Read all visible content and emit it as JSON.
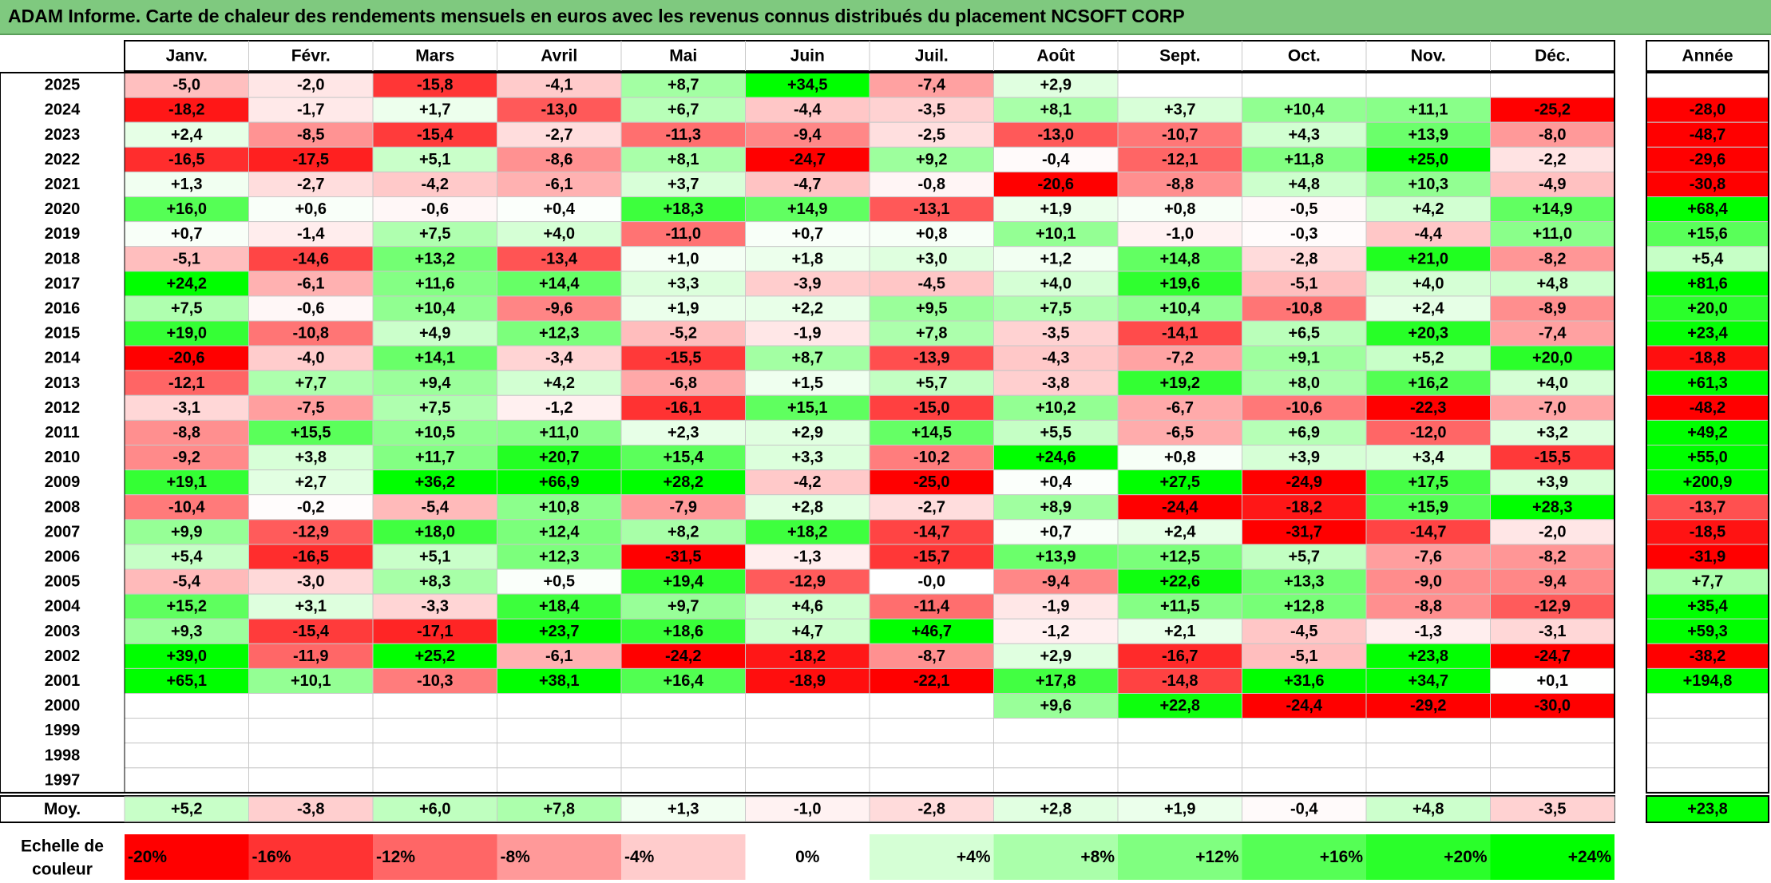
{
  "title": "ADAM Informe. Carte de chaleur des rendements mensuels en euros avec les revenus connus distribués du placement NCSOFT CORP",
  "chart_data": {
    "type": "heatmap",
    "months": [
      "Janv.",
      "Févr.",
      "Mars",
      "Avril",
      "Mai",
      "Juin",
      "Juil.",
      "Août",
      "Sept.",
      "Oct.",
      "Nov.",
      "Déc."
    ],
    "year_header": "Année",
    "rows": [
      {
        "label": "2025",
        "values": [
          "-5,0",
          "-2,0",
          "-15,8",
          "-4,1",
          "+8,7",
          "+34,5",
          "-7,4",
          "+2,9",
          "",
          "",
          "",
          ""
        ],
        "year": ""
      },
      {
        "label": "2024",
        "values": [
          "-18,2",
          "-1,7",
          "+1,7",
          "-13,0",
          "+6,7",
          "-4,4",
          "-3,5",
          "+8,1",
          "+3,7",
          "+10,4",
          "+11,1",
          "-25,2"
        ],
        "year": "-28,0"
      },
      {
        "label": "2023",
        "values": [
          "+2,4",
          "-8,5",
          "-15,4",
          "-2,7",
          "-11,3",
          "-9,4",
          "-2,5",
          "-13,0",
          "-10,7",
          "+4,3",
          "+13,9",
          "-8,0"
        ],
        "year": "-48,7"
      },
      {
        "label": "2022",
        "values": [
          "-16,5",
          "-17,5",
          "+5,1",
          "-8,6",
          "+8,1",
          "-24,7",
          "+9,2",
          "-0,4",
          "-12,1",
          "+11,8",
          "+25,0",
          "-2,2"
        ],
        "year": "-29,6"
      },
      {
        "label": "2021",
        "values": [
          "+1,3",
          "-2,7",
          "-4,2",
          "-6,1",
          "+3,7",
          "-4,7",
          "-0,8",
          "-20,6",
          "-8,8",
          "+4,8",
          "+10,3",
          "-4,9"
        ],
        "year": "-30,8"
      },
      {
        "label": "2020",
        "values": [
          "+16,0",
          "+0,6",
          "-0,6",
          "+0,4",
          "+18,3",
          "+14,9",
          "-13,1",
          "+1,9",
          "+0,8",
          "-0,5",
          "+4,2",
          "+14,9"
        ],
        "year": "+68,4"
      },
      {
        "label": "2019",
        "values": [
          "+0,7",
          "-1,4",
          "+7,5",
          "+4,0",
          "-11,0",
          "+0,7",
          "+0,8",
          "+10,1",
          "-1,0",
          "-0,3",
          "-4,4",
          "+11,0"
        ],
        "year": "+15,6"
      },
      {
        "label": "2018",
        "values": [
          "-5,1",
          "-14,6",
          "+13,2",
          "-13,4",
          "+1,0",
          "+1,8",
          "+3,0",
          "+1,2",
          "+14,8",
          "-2,8",
          "+21,0",
          "-8,2"
        ],
        "year": "+5,4"
      },
      {
        "label": "2017",
        "values": [
          "+24,2",
          "-6,1",
          "+11,6",
          "+14,4",
          "+3,3",
          "-3,9",
          "-4,5",
          "+4,0",
          "+19,6",
          "-5,1",
          "+4,0",
          "+4,8"
        ],
        "year": "+81,6"
      },
      {
        "label": "2016",
        "values": [
          "+7,5",
          "-0,6",
          "+10,4",
          "-9,6",
          "+1,9",
          "+2,2",
          "+9,5",
          "+7,5",
          "+10,4",
          "-10,8",
          "+2,4",
          "-8,9"
        ],
        "year": "+20,0"
      },
      {
        "label": "2015",
        "values": [
          "+19,0",
          "-10,8",
          "+4,9",
          "+12,3",
          "-5,2",
          "-1,9",
          "+7,8",
          "-3,5",
          "-14,1",
          "+6,5",
          "+20,3",
          "-7,4"
        ],
        "year": "+23,4"
      },
      {
        "label": "2014",
        "values": [
          "-20,6",
          "-4,0",
          "+14,1",
          "-3,4",
          "-15,5",
          "+8,7",
          "-13,9",
          "-4,3",
          "-7,2",
          "+9,1",
          "+5,2",
          "+20,0"
        ],
        "year": "-18,8"
      },
      {
        "label": "2013",
        "values": [
          "-12,1",
          "+7,7",
          "+9,4",
          "+4,2",
          "-6,8",
          "+1,5",
          "+5,7",
          "-3,8",
          "+19,2",
          "+8,0",
          "+16,2",
          "+4,0"
        ],
        "year": "+61,3"
      },
      {
        "label": "2012",
        "values": [
          "-3,1",
          "-7,5",
          "+7,5",
          "-1,2",
          "-16,1",
          "+15,1",
          "-15,0",
          "+10,2",
          "-6,7",
          "-10,6",
          "-22,3",
          "-7,0"
        ],
        "year": "-48,2"
      },
      {
        "label": "2011",
        "values": [
          "-8,8",
          "+15,5",
          "+10,5",
          "+11,0",
          "+2,3",
          "+2,9",
          "+14,5",
          "+5,5",
          "-6,5",
          "+6,9",
          "-12,0",
          "+3,2"
        ],
        "year": "+49,2"
      },
      {
        "label": "2010",
        "values": [
          "-9,2",
          "+3,8",
          "+11,7",
          "+20,7",
          "+15,4",
          "+3,3",
          "-10,2",
          "+24,6",
          "+0,8",
          "+3,9",
          "+3,4",
          "-15,5"
        ],
        "year": "+55,0"
      },
      {
        "label": "2009",
        "values": [
          "+19,1",
          "+2,7",
          "+36,2",
          "+66,9",
          "+28,2",
          "-4,2",
          "-25,0",
          "+0,4",
          "+27,5",
          "-24,9",
          "+17,5",
          "+3,9"
        ],
        "year": "+200,9"
      },
      {
        "label": "2008",
        "values": [
          "-10,4",
          "-0,2",
          "-5,4",
          "+10,8",
          "-7,9",
          "+2,8",
          "-2,7",
          "+8,9",
          "-24,4",
          "-18,2",
          "+15,9",
          "+28,3"
        ],
        "year": "-13,7"
      },
      {
        "label": "2007",
        "values": [
          "+9,9",
          "-12,9",
          "+18,0",
          "+12,4",
          "+8,2",
          "+18,2",
          "-14,7",
          "+0,7",
          "+2,4",
          "-31,7",
          "-14,7",
          "-2,0"
        ],
        "year": "-18,5"
      },
      {
        "label": "2006",
        "values": [
          "+5,4",
          "-16,5",
          "+5,1",
          "+12,3",
          "-31,5",
          "-1,3",
          "-15,7",
          "+13,9",
          "+12,5",
          "+5,7",
          "-7,6",
          "-8,2"
        ],
        "year": "-31,9"
      },
      {
        "label": "2005",
        "values": [
          "-5,4",
          "-3,0",
          "+8,3",
          "+0,5",
          "+19,4",
          "-12,9",
          "-0,0",
          "-9,4",
          "+22,6",
          "+13,3",
          "-9,0",
          "-9,4"
        ],
        "year": "+7,7"
      },
      {
        "label": "2004",
        "values": [
          "+15,2",
          "+3,1",
          "-3,3",
          "+18,4",
          "+9,7",
          "+4,6",
          "-11,4",
          "-1,9",
          "+11,5",
          "+12,8",
          "-8,8",
          "-12,9"
        ],
        "year": "+35,4"
      },
      {
        "label": "2003",
        "values": [
          "+9,3",
          "-15,4",
          "-17,1",
          "+23,7",
          "+18,6",
          "+4,7",
          "+46,7",
          "-1,2",
          "+2,1",
          "-4,5",
          "-1,3",
          "-3,1"
        ],
        "year": "+59,3"
      },
      {
        "label": "2002",
        "values": [
          "+39,0",
          "-11,9",
          "+25,2",
          "-6,1",
          "-24,2",
          "-18,2",
          "-8,7",
          "+2,9",
          "-16,7",
          "-5,1",
          "+23,8",
          "-24,7"
        ],
        "year": "-38,2"
      },
      {
        "label": "2001",
        "values": [
          "+65,1",
          "+10,1",
          "-10,3",
          "+38,1",
          "+16,4",
          "-18,9",
          "-22,1",
          "+17,8",
          "-14,8",
          "+31,6",
          "+34,7",
          "+0,1"
        ],
        "year": "+194,8"
      },
      {
        "label": "2000",
        "values": [
          "",
          "",
          "",
          "",
          "",
          "",
          "",
          "+9,6",
          "+22,8",
          "-24,4",
          "-29,2",
          "-30,0"
        ],
        "year": ""
      },
      {
        "label": "1999",
        "values": [
          "",
          "",
          "",
          "",
          "",
          "",
          "",
          "",
          "",
          "",
          "",
          ""
        ],
        "year": ""
      },
      {
        "label": "1998",
        "values": [
          "",
          "",
          "",
          "",
          "",
          "",
          "",
          "",
          "",
          "",
          "",
          ""
        ],
        "year": ""
      },
      {
        "label": "1997",
        "values": [
          "",
          "",
          "",
          "",
          "",
          "",
          "",
          "",
          "",
          "",
          "",
          ""
        ],
        "year": ""
      }
    ],
    "average": {
      "label": "Moy.",
      "values": [
        "+5,2",
        "-3,8",
        "+6,0",
        "+7,8",
        "+1,3",
        "-1,0",
        "-2,8",
        "+2,8",
        "+1,9",
        "-0,4",
        "+4,8",
        "-3,5"
      ],
      "year": "+23,8"
    },
    "scale": {
      "label_line1": "Echelle de",
      "label_line2": "couleur",
      "items": [
        {
          "text": "-20%",
          "value": -20
        },
        {
          "text": "-16%",
          "value": -16
        },
        {
          "text": "-12%",
          "value": -12
        },
        {
          "text": "-8%",
          "value": -8
        },
        {
          "text": "-4%",
          "value": -4
        },
        {
          "text": "0%",
          "value": 0
        },
        {
          "text": "+4%",
          "value": 4
        },
        {
          "text": "+8%",
          "value": 8
        },
        {
          "text": "+12%",
          "value": 12
        },
        {
          "text": "+16%",
          "value": 16
        },
        {
          "text": "+20%",
          "value": 20
        },
        {
          "text": "+24%",
          "value": 24
        }
      ]
    },
    "colors": {
      "max_red": "#ff0000",
      "max_green": "#00ff00",
      "neutral": "#ffffff",
      "grid": "#c8c8c8",
      "border": "#000000"
    }
  }
}
